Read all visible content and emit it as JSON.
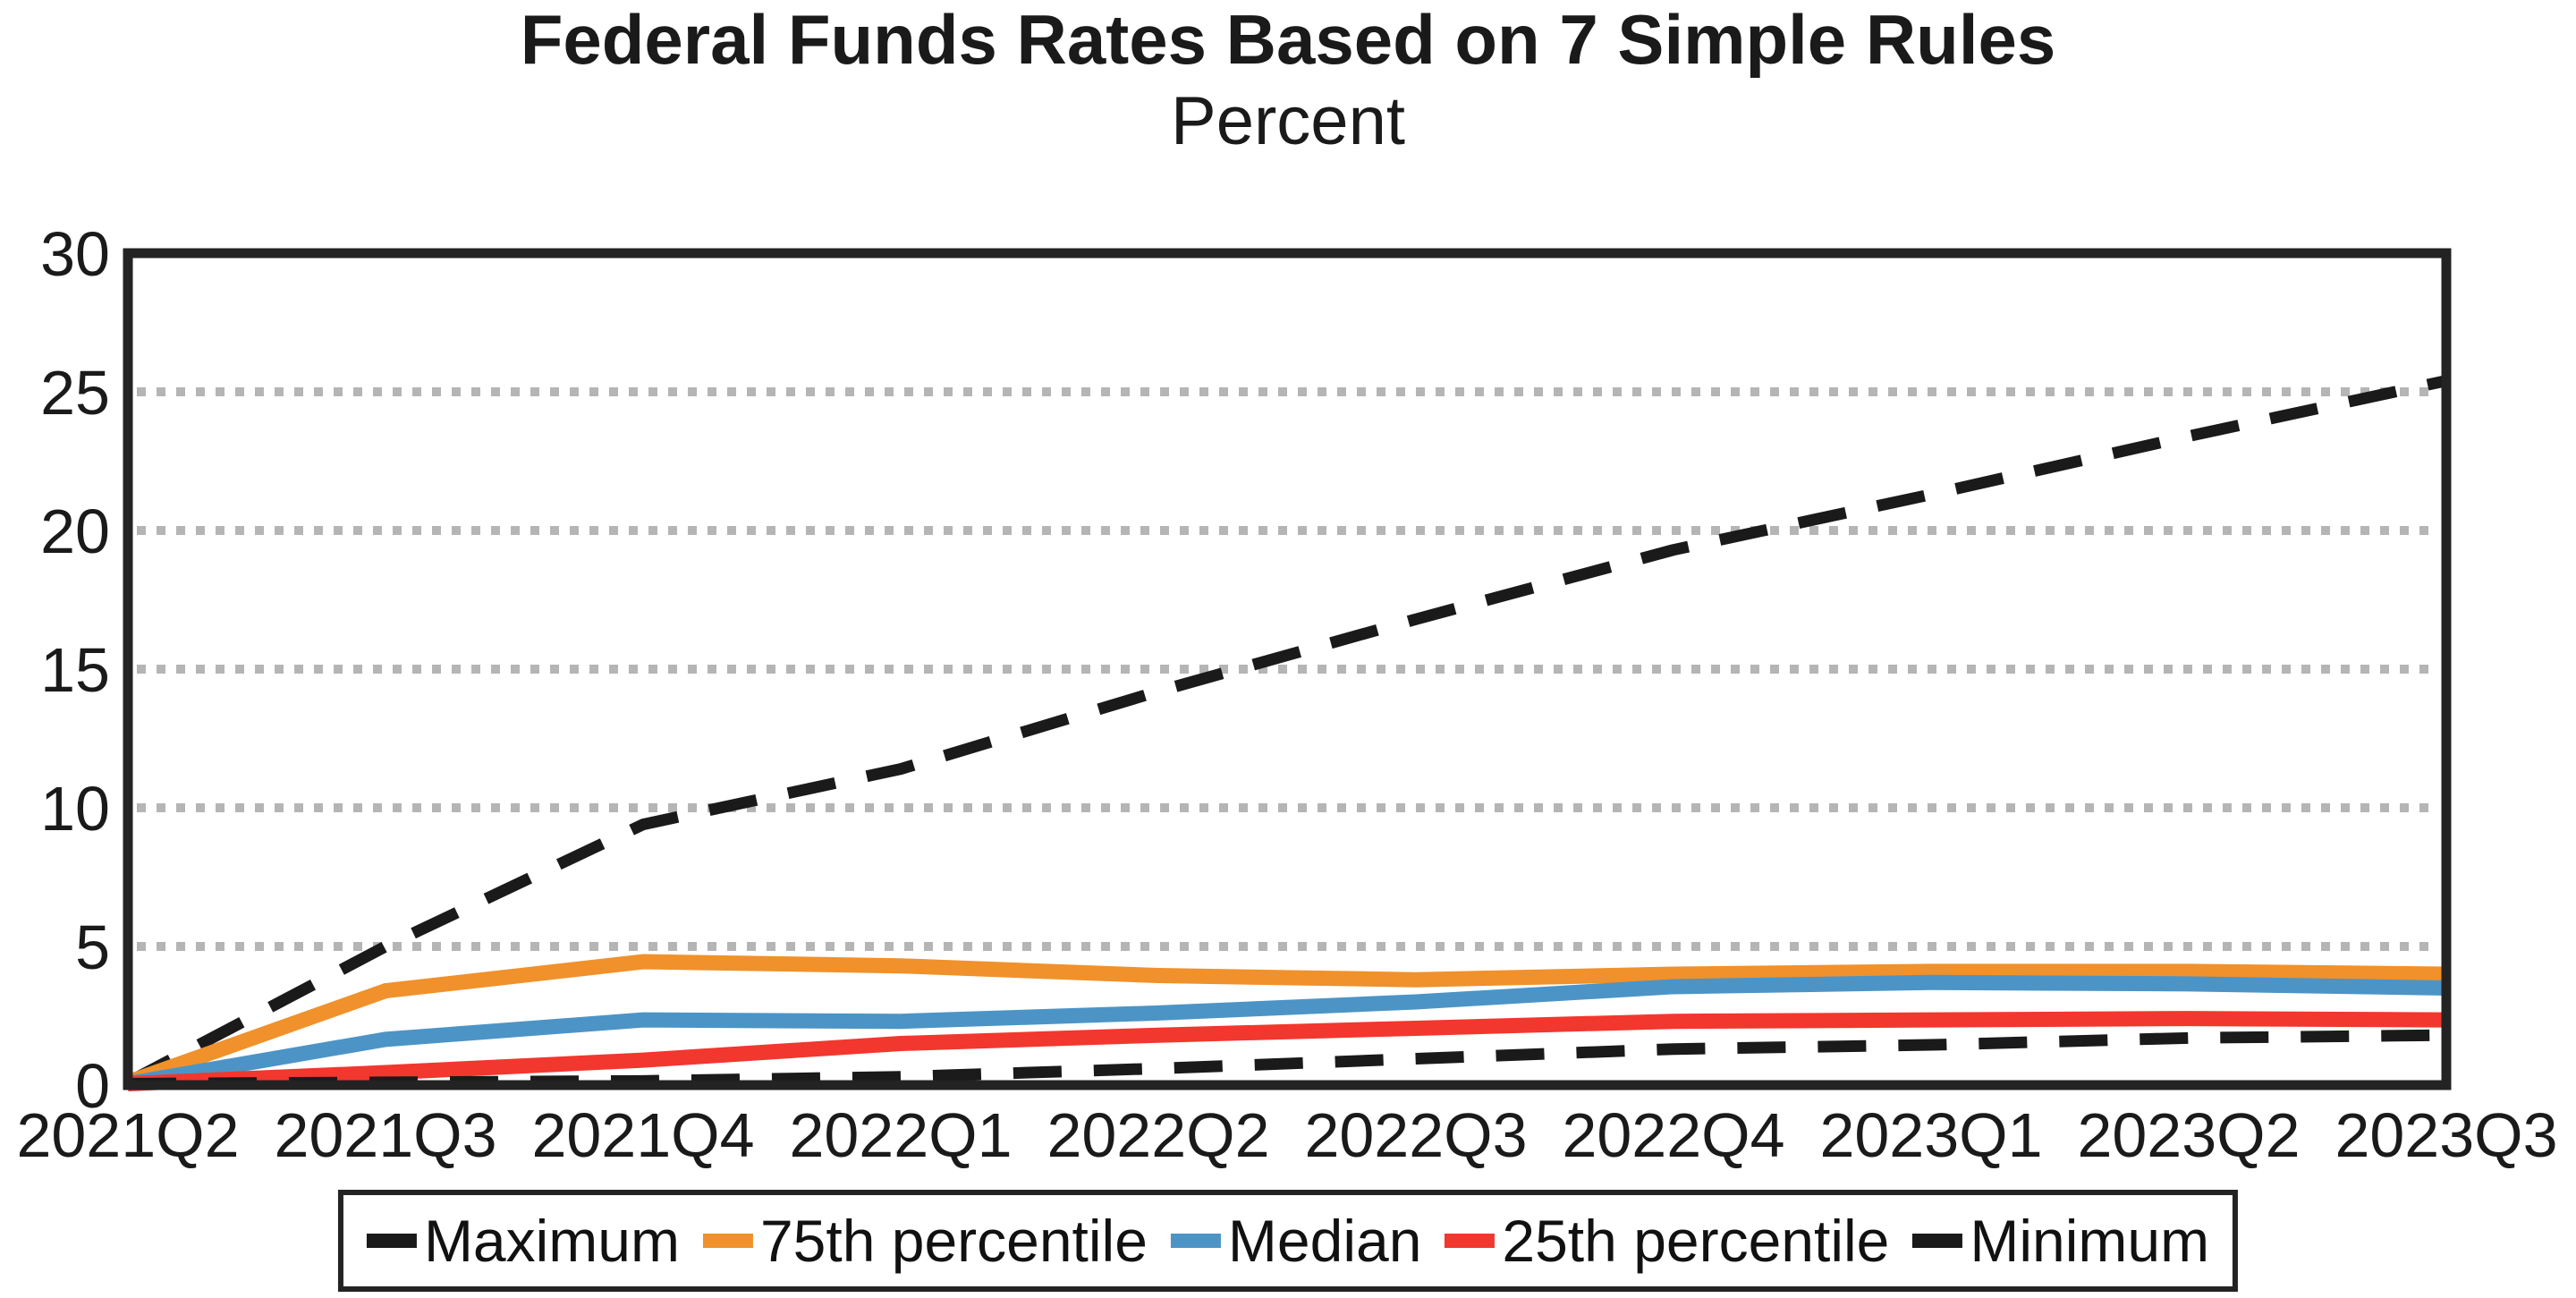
{
  "page": {
    "background": "#ffffff"
  },
  "header": {
    "title": "Federal Funds Rates Based on 7 Simple Rules",
    "subtitle": "Percent"
  },
  "chart_data": {
    "type": "line",
    "title": "Federal Funds Rates Based on 7 Simple Rules",
    "subtitle": "Percent",
    "xlabel": "",
    "ylabel": "Percent",
    "ylim": [
      0,
      30
    ],
    "yticks": [
      0,
      5,
      10,
      15,
      20,
      25,
      30
    ],
    "grid": "horizontal dotted gray gridlines at 5,10,15,20,25",
    "legend_position": "bottom-center",
    "categories": [
      "2021Q2",
      "2021Q3",
      "2021Q4",
      "2022Q1",
      "2022Q2",
      "2022Q3",
      "2022Q4",
      "2023Q1",
      "2023Q2",
      "2023Q3"
    ],
    "series": [
      {
        "name": "Maximum",
        "color": "#1a1a1a",
        "line_style": "dashed",
        "values": [
          0.1,
          5.0,
          9.4,
          11.4,
          14.2,
          16.8,
          19.3,
          21.3,
          23.4,
          25.4
        ]
      },
      {
        "name": "75th percentile",
        "color": "#f0912b",
        "line_style": "solid",
        "values": [
          0.1,
          3.4,
          4.45,
          4.3,
          3.95,
          3.8,
          4.0,
          4.1,
          4.1,
          4.0
        ]
      },
      {
        "name": "Median",
        "color": "#4c94c6",
        "line_style": "solid",
        "values": [
          0.05,
          1.65,
          2.35,
          2.3,
          2.6,
          3.0,
          3.55,
          3.7,
          3.65,
          3.5
        ]
      },
      {
        "name": "25th percentile",
        "color": "#f2372e",
        "line_style": "solid",
        "values": [
          0.05,
          0.45,
          0.9,
          1.5,
          1.8,
          2.05,
          2.3,
          2.35,
          2.4,
          2.35
        ]
      },
      {
        "name": "Minimum",
        "color": "#1a1a1a",
        "line_style": "dashed",
        "values": [
          0.05,
          0.1,
          0.15,
          0.3,
          0.6,
          0.95,
          1.3,
          1.45,
          1.7,
          1.8
        ]
      }
    ]
  },
  "colors": {
    "axis": "#232323",
    "gridline": "#b5b5b5",
    "text": "#1a1a1a",
    "legend_border": "#232323"
  }
}
